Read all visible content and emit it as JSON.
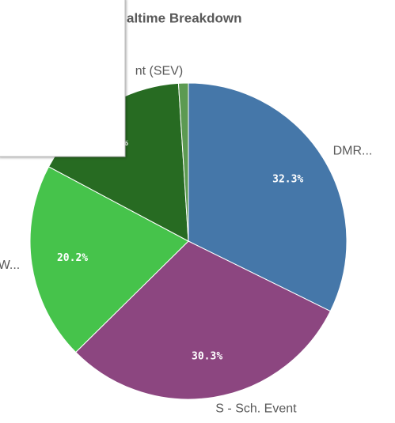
{
  "chart_data": {
    "type": "pie",
    "title": "altime Breakdown",
    "categories": [
      "DMR...",
      "S - Sch. Event",
      "W...",
      null,
      "nt (SEV)"
    ],
    "values": [
      32.3,
      30.3,
      20.2,
      16.2,
      1.0
    ],
    "value_labels": [
      "32.3%",
      "30.3%",
      "20.2%",
      "%",
      null
    ],
    "colors": [
      "#4577a9",
      "#8c4680",
      "#46c34b",
      "#276b22",
      "#5c9a52"
    ]
  }
}
